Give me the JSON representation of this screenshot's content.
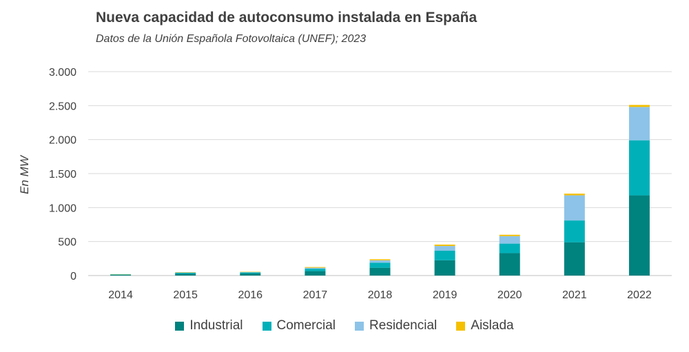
{
  "chart_data": {
    "type": "bar",
    "stacked": true,
    "title": "Nueva capacidad de autoconsumo instalada en España",
    "subtitle": "Datos de la Unión Española Fotovoltaica (UNEF); 2023",
    "xlabel": "",
    "ylabel": "En MW",
    "ylim": [
      0,
      3000
    ],
    "yticks": [
      0,
      500,
      1000,
      1500,
      2000,
      2500,
      3000
    ],
    "ytick_labels": [
      "0",
      "500",
      "1.000",
      "1.500",
      "2.000",
      "2.500",
      "3.000"
    ],
    "grid": true,
    "legend_position": "bottom",
    "categories": [
      "2014",
      "2015",
      "2016",
      "2017",
      "2018",
      "2019",
      "2020",
      "2021",
      "2022"
    ],
    "series": [
      {
        "name": "Industrial",
        "color": "#00827F",
        "values": [
          10,
          25,
          30,
          65,
          115,
          225,
          330,
          490,
          1180
        ]
      },
      {
        "name": "Comercial",
        "color": "#00B0B9",
        "values": [
          5,
          15,
          15,
          35,
          75,
          140,
          140,
          320,
          810
        ]
      },
      {
        "name": "Residencial",
        "color": "#8DC3E8",
        "values": [
          2,
          5,
          5,
          15,
          35,
          70,
          110,
          370,
          490
        ]
      },
      {
        "name": "Aislada",
        "color": "#F5C000",
        "values": [
          3,
          5,
          5,
          10,
          15,
          20,
          20,
          25,
          30
        ]
      }
    ]
  }
}
